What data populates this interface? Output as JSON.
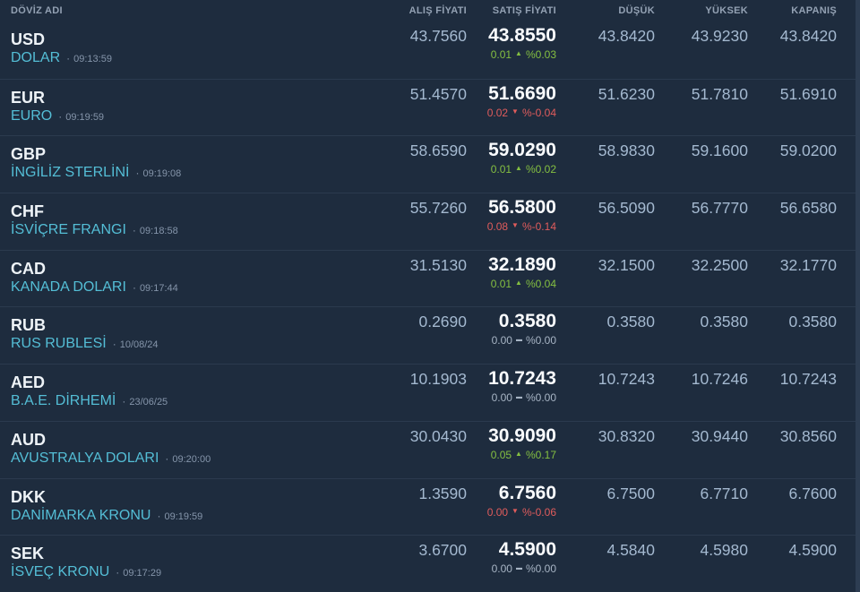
{
  "colors": {
    "background": "#1e2c3e",
    "accent_teal": "#54bed6",
    "up_green": "#84bf41",
    "down_red": "#e05c5c",
    "neutral_gray": "#a7b4c4"
  },
  "icons": {
    "up": "▲",
    "down": "▼",
    "flat": "▬"
  },
  "bullet": "·",
  "table": {
    "columns": {
      "name": "DÖVİZ ADI",
      "buy": "ALIŞ FİYATI",
      "sell": "SATIŞ FİYATI",
      "low": "DÜŞÜK",
      "high": "YÜKSEK",
      "close": "KAPANIŞ"
    },
    "rows": [
      {
        "code": "USD",
        "name": "DOLAR",
        "time": "09:13:59",
        "buy": "43.7560",
        "sell": "43.8550",
        "change": "0.01",
        "direction": "up",
        "percent": "%0.03",
        "low": "43.8420",
        "high": "43.9230",
        "close": "43.8420"
      },
      {
        "code": "EUR",
        "name": "EURO",
        "time": "09:19:59",
        "buy": "51.4570",
        "sell": "51.6690",
        "change": "0.02",
        "direction": "down",
        "percent": "%-0.04",
        "low": "51.6230",
        "high": "51.7810",
        "close": "51.6910"
      },
      {
        "code": "GBP",
        "name": "İNGİLİZ STERLİNİ",
        "time": "09:19:08",
        "buy": "58.6590",
        "sell": "59.0290",
        "change": "0.01",
        "direction": "up",
        "percent": "%0.02",
        "low": "58.9830",
        "high": "59.1600",
        "close": "59.0200"
      },
      {
        "code": "CHF",
        "name": "İSVİÇRE FRANGI",
        "time": "09:18:58",
        "buy": "55.7260",
        "sell": "56.5800",
        "change": "0.08",
        "direction": "down",
        "percent": "%-0.14",
        "low": "56.5090",
        "high": "56.7770",
        "close": "56.6580"
      },
      {
        "code": "CAD",
        "name": "KANADA DOLARI",
        "time": "09:17:44",
        "buy": "31.5130",
        "sell": "32.1890",
        "change": "0.01",
        "direction": "up",
        "percent": "%0.04",
        "low": "32.1500",
        "high": "32.2500",
        "close": "32.1770"
      },
      {
        "code": "RUB",
        "name": "RUS RUBLESİ",
        "time": "10/08/24",
        "buy": "0.2690",
        "sell": "0.3580",
        "change": "0.00",
        "direction": "flat",
        "percent": "%0.00",
        "low": "0.3580",
        "high": "0.3580",
        "close": "0.3580"
      },
      {
        "code": "AED",
        "name": "B.A.E. DİRHEMİ",
        "time": "23/06/25",
        "buy": "10.1903",
        "sell": "10.7243",
        "change": "0.00",
        "direction": "flat",
        "percent": "%0.00",
        "low": "10.7243",
        "high": "10.7246",
        "close": "10.7243"
      },
      {
        "code": "AUD",
        "name": "AVUSTRALYA DOLARI",
        "time": "09:20:00",
        "buy": "30.0430",
        "sell": "30.9090",
        "change": "0.05",
        "direction": "up",
        "percent": "%0.17",
        "low": "30.8320",
        "high": "30.9440",
        "close": "30.8560"
      },
      {
        "code": "DKK",
        "name": "DANİMARKA KRONU",
        "time": "09:19:59",
        "buy": "1.3590",
        "sell": "6.7560",
        "change": "0.00",
        "direction": "down",
        "percent": "%-0.06",
        "low": "6.7500",
        "high": "6.7710",
        "close": "6.7600"
      },
      {
        "code": "SEK",
        "name": "İSVEÇ KRONU",
        "time": "09:17:29",
        "buy": "3.6700",
        "sell": "4.5900",
        "change": "0.00",
        "direction": "flat",
        "percent": "%0.00",
        "low": "4.5840",
        "high": "4.5980",
        "close": "4.5900"
      }
    ]
  }
}
